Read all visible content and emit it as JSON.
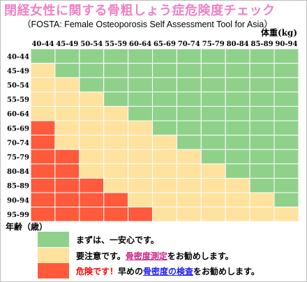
{
  "title": "閉経女性に関する骨粗しょう症危険度チェック",
  "subtitle": "（FOSTA: Female Osteoporosis Self Assessment Tool for Asia）",
  "colors": {
    "green": "#8fd18b",
    "yellow": "#ffe29e",
    "red": "#ff5a3c",
    "grid": "#ffffff"
  },
  "chart_data": {
    "type": "heatmap",
    "title": "閉経女性に関する骨粗しょう症危険度チェック",
    "xlabel": "体重(kg)",
    "ylabel": "年齢（歳）",
    "x_categories": [
      "40-44",
      "45-49",
      "50-54",
      "55-59",
      "60-64",
      "65-69",
      "70-74",
      "75-79",
      "80-84",
      "85-89",
      "90-94"
    ],
    "y_categories": [
      "40-44",
      "45-49",
      "50-54",
      "55-59",
      "60-64",
      "65-69",
      "70-74",
      "75-79",
      "80-84",
      "85-89",
      "90-94",
      "95-99"
    ],
    "value_legend": {
      "0": "low",
      "1": "caution",
      "2": "danger"
    },
    "values": [
      [
        0,
        0,
        0,
        0,
        0,
        0,
        0,
        0,
        0,
        0,
        0
      ],
      [
        1,
        0,
        0,
        0,
        0,
        0,
        0,
        0,
        0,
        0,
        0
      ],
      [
        1,
        1,
        0,
        0,
        0,
        0,
        0,
        0,
        0,
        0,
        0
      ],
      [
        1,
        1,
        1,
        0,
        0,
        0,
        0,
        0,
        0,
        0,
        0
      ],
      [
        1,
        1,
        1,
        1,
        0,
        0,
        0,
        0,
        0,
        0,
        0
      ],
      [
        2,
        1,
        1,
        1,
        1,
        0,
        0,
        0,
        0,
        0,
        0
      ],
      [
        2,
        1,
        1,
        1,
        1,
        1,
        0,
        0,
        0,
        0,
        0
      ],
      [
        2,
        2,
        1,
        1,
        1,
        1,
        1,
        0,
        0,
        0,
        0
      ],
      [
        2,
        2,
        1,
        1,
        1,
        1,
        1,
        1,
        0,
        0,
        0
      ],
      [
        2,
        2,
        2,
        1,
        1,
        1,
        1,
        1,
        1,
        0,
        0
      ],
      [
        2,
        2,
        2,
        2,
        1,
        1,
        1,
        1,
        1,
        1,
        0
      ],
      [
        2,
        2,
        2,
        2,
        2,
        1,
        1,
        1,
        1,
        1,
        1
      ]
    ]
  },
  "legend": {
    "green": {
      "text": "まずは、一安心です。"
    },
    "yellow": {
      "text_a": "要注意です。",
      "text_b": "骨密度測定",
      "text_c": "をお勧めします。"
    },
    "red": {
      "text_a": "危険です！",
      "text_b": "早めの",
      "text_c": "骨密度の検査",
      "text_d": "をお勧めします。"
    }
  }
}
